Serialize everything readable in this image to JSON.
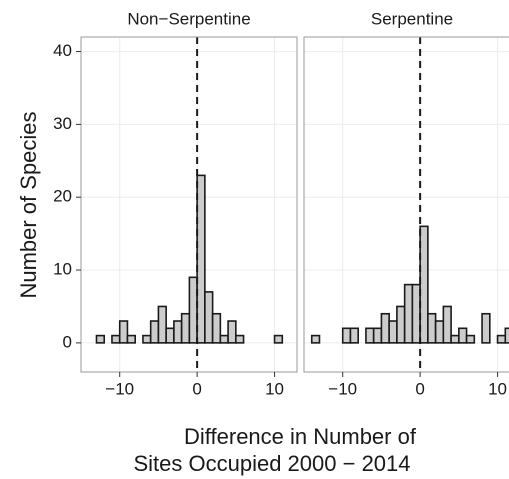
{
  "chart_data": {
    "type": "histogram",
    "x_label": [
      "Difference in Number of",
      "Sites Occupied 2000 − 2014"
    ],
    "y_label": "Number of Species",
    "xlim": [
      -15.0,
      12.9
    ],
    "ylim": [
      -4,
      42
    ],
    "xticks": [
      {
        "value": -10,
        "label": "−10"
      },
      0,
      10
    ],
    "yticks": [
      0,
      10,
      20,
      30,
      40
    ],
    "grid": true,
    "vline": 0,
    "color": "#cccccc",
    "bins": [
      -14,
      -13,
      -12,
      -11,
      -10,
      -9,
      -8,
      -7,
      -6,
      -5,
      -4,
      -3,
      -2,
      -1,
      0,
      1,
      2,
      3,
      4,
      5,
      6,
      7,
      8,
      9,
      10,
      11,
      12
    ],
    "facets": [
      {
        "title": "Non−Serpentine",
        "values": [
          0,
          1,
          0,
          1,
          3,
          1,
          0,
          1,
          3,
          5,
          2,
          3,
          4,
          9,
          23,
          7,
          4,
          1,
          3,
          1,
          0,
          0,
          0,
          0,
          1,
          0
        ]
      },
      {
        "title": "Serpentine",
        "values": [
          1,
          0,
          0,
          0,
          2,
          2,
          0,
          2,
          2,
          4,
          3,
          5,
          8,
          8,
          16,
          4,
          3,
          5,
          1,
          2,
          1,
          0,
          4,
          0,
          1,
          2
        ]
      }
    ]
  }
}
